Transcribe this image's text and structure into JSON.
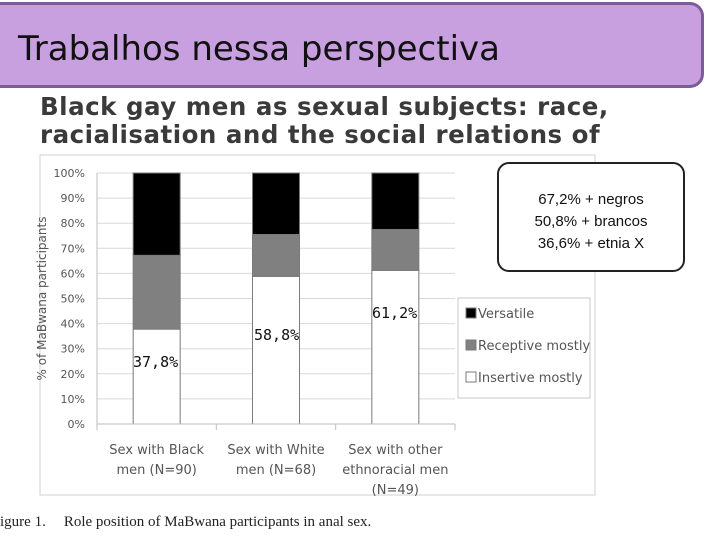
{
  "slide_title": "Trabalhos nessa perspectiva",
  "paper_heading": {
    "line1": "Black gay men as sexual subjects: race,",
    "line2": "racialisation and the social relations of"
  },
  "callout": {
    "line1": "67,2% + negros",
    "line2": "50,8% + brancos",
    "line3": "36,6% + etnia X"
  },
  "annotations": {
    "black": "37,8%",
    "white": "58,8%",
    "other": "61,2%"
  },
  "caption": {
    "label": "igure 1.",
    "text": "Role position of MaBwana participants in anal sex."
  },
  "colors": {
    "banner": "#c8a0e0",
    "banner_border": "#7d5b98",
    "versatile": "#000000",
    "receptive": "#808080",
    "insertive": "#ffffff"
  },
  "chart_data": {
    "type": "bar",
    "stacked": true,
    "categories": [
      [
        "Sex with Black",
        "men (N=90)"
      ],
      [
        "Sex with White",
        "men (N=68)"
      ],
      [
        "Sex with other",
        "ethnoracial men",
        "(N=49)"
      ]
    ],
    "series": [
      {
        "name": "Insertive mostly",
        "color": "#ffffff",
        "values": [
          37.8,
          58.8,
          61.2
        ]
      },
      {
        "name": "Receptive mostly",
        "color": "#808080",
        "values": [
          29.4,
          16.7,
          16.3
        ]
      },
      {
        "name": "Versatile",
        "color": "#000000",
        "values": [
          32.8,
          24.5,
          22.5
        ]
      }
    ],
    "ylabel": "% of MaBwana participants",
    "yticks": [
      "0%",
      "10%",
      "20%",
      "30%",
      "40%",
      "50%",
      "60%",
      "70%",
      "80%",
      "90%",
      "100%"
    ],
    "ylim": [
      0,
      100
    ],
    "legend_order": [
      "Versatile",
      "Receptive mostly",
      "Insertive mostly"
    ],
    "legend_position": "right",
    "grid": true
  }
}
